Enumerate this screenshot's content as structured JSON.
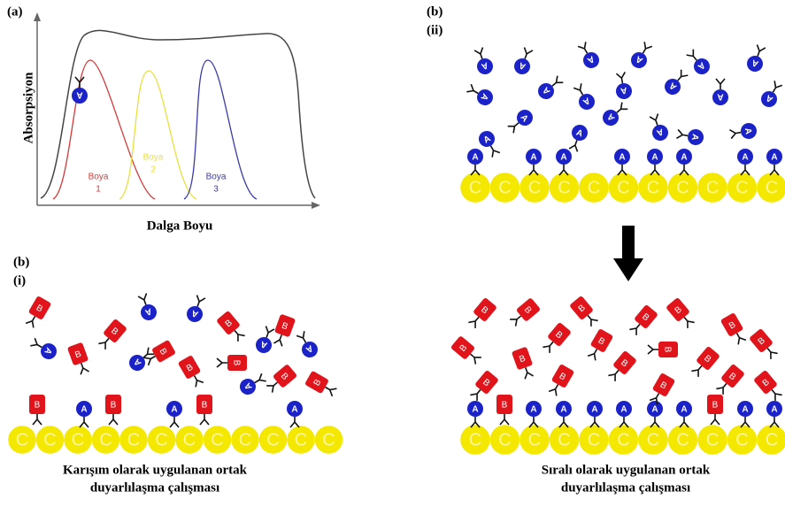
{
  "panel_a": {
    "label": "(a)",
    "y_axis": "Absorpsiyon",
    "x_axis": "Dalga Boyu",
    "curves": [
      {
        "name": "Boya",
        "number": "1",
        "color": "#d43a3a"
      },
      {
        "name": "Boya",
        "number": "2",
        "color": "#e8e040"
      },
      {
        "name": "Boya",
        "number": "3",
        "color": "#3a3aa8"
      }
    ]
  },
  "panel_b_ii": {
    "label": "(b)",
    "sublabel": "(ii)",
    "caption": [
      "Sıralı olarak uygulanan ortak",
      "duyarlılaşma çalışması"
    ]
  },
  "panel_b_i": {
    "label": "(b)",
    "sublabel": "(i)",
    "caption": [
      "Karışım olarak uygulanan ortak",
      "duyarlılaşma çalışması"
    ]
  },
  "symbols": {
    "antigen_a": "A",
    "antigen_b": "B",
    "surface": "C"
  }
}
